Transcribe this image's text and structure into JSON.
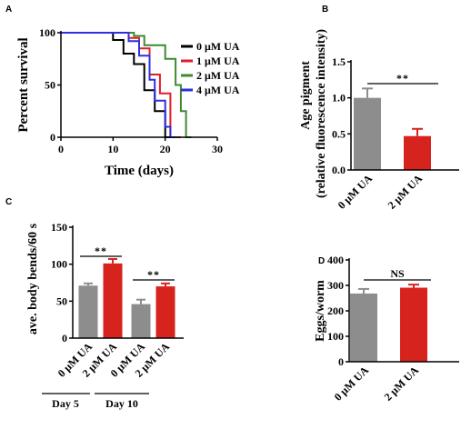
{
  "chart_data": [
    {
      "panel": "A",
      "type": "line",
      "xlabel": "Time (days)",
      "ylabel": "Percent survival",
      "xlim": [
        0,
        30
      ],
      "ylim": [
        0,
        100
      ],
      "xticks": [
        0,
        10,
        20,
        30
      ],
      "yticks": [
        0,
        50,
        100
      ],
      "legend_position": "right",
      "series": [
        {
          "name": "0 μM UA",
          "color": "#000000",
          "points": [
            [
              0,
              100
            ],
            [
              10,
              100
            ],
            [
              10,
              93
            ],
            [
              12,
              93
            ],
            [
              12,
              80
            ],
            [
              14,
              80
            ],
            [
              14,
              70
            ],
            [
              16,
              70
            ],
            [
              16,
              45
            ],
            [
              18,
              45
            ],
            [
              18,
              25
            ],
            [
              20,
              25
            ],
            [
              20,
              0
            ],
            [
              22,
              0
            ]
          ]
        },
        {
          "name": "1 μM UA",
          "color": "#e01e26",
          "points": [
            [
              0,
              100
            ],
            [
              13,
              100
            ],
            [
              13,
              95
            ],
            [
              15,
              95
            ],
            [
              15,
              85
            ],
            [
              17,
              85
            ],
            [
              17,
              60
            ],
            [
              19,
              60
            ],
            [
              19,
              42
            ],
            [
              21,
              42
            ],
            [
              21,
              0
            ],
            [
              23,
              0
            ]
          ]
        },
        {
          "name": "2 μM UA",
          "color": "#3f8a2e",
          "points": [
            [
              0,
              100
            ],
            [
              14,
              100
            ],
            [
              14,
              97
            ],
            [
              16,
              97
            ],
            [
              16,
              88
            ],
            [
              18,
              88
            ],
            [
              18,
              88
            ],
            [
              20,
              88
            ],
            [
              20,
              75
            ],
            [
              22,
              75
            ],
            [
              22,
              50
            ],
            [
              23,
              50
            ],
            [
              23,
              25
            ],
            [
              24,
              25
            ],
            [
              24,
              0
            ],
            [
              25,
              0
            ]
          ]
        },
        {
          "name": "4 μM UA",
          "color": "#2d2fe0",
          "points": [
            [
              0,
              100
            ],
            [
              13,
              100
            ],
            [
              13,
              92
            ],
            [
              15,
              92
            ],
            [
              15,
              78
            ],
            [
              17,
              78
            ],
            [
              17,
              55
            ],
            [
              18,
              55
            ],
            [
              18,
              35
            ],
            [
              20,
              35
            ],
            [
              20,
              10
            ],
            [
              21,
              10
            ],
            [
              21,
              0
            ],
            [
              22,
              0
            ]
          ]
        }
      ]
    },
    {
      "panel": "B",
      "type": "bar",
      "ylabel_line1": "Age pigment",
      "ylabel_line2": "(relative fluorescence intensity)",
      "ylim": [
        0,
        1.5
      ],
      "yticks": [
        "0.0",
        "0.5",
        "1.0",
        "1.5"
      ],
      "categories": [
        "0 μM UA",
        "2 μM UA"
      ],
      "values": [
        1.0,
        0.47
      ],
      "errors": [
        0.13,
        0.1
      ],
      "colors": [
        "#8d8d8d",
        "#d7231e"
      ],
      "significance": "**"
    },
    {
      "panel": "C",
      "type": "bar",
      "ylabel": "ave. body bends/60 s",
      "ylim": [
        0,
        150
      ],
      "yticks": [
        "0",
        "50",
        "100",
        "150"
      ],
      "categories": [
        "0 μM UA",
        "2 μM UA",
        "0 μM UA",
        "2 μM UA"
      ],
      "values": [
        71,
        101,
        46,
        70
      ],
      "errors": [
        3,
        6,
        6,
        4
      ],
      "colors": [
        "#8d8d8d",
        "#d7231e",
        "#8d8d8d",
        "#d7231e"
      ],
      "groups": [
        "Day 5",
        "Day 10"
      ],
      "significance": [
        "**",
        "**"
      ]
    },
    {
      "panel": "D",
      "type": "bar",
      "ylabel": "Eggs/worm",
      "ylim": [
        0,
        400
      ],
      "yticks": [
        "0",
        "100",
        "200",
        "300",
        "400"
      ],
      "categories": [
        "0 μM UA",
        "2 μM UA"
      ],
      "values": [
        268,
        291
      ],
      "errors": [
        18,
        12
      ],
      "colors": [
        "#8d8d8d",
        "#d7231e"
      ],
      "significance": "NS"
    }
  ]
}
